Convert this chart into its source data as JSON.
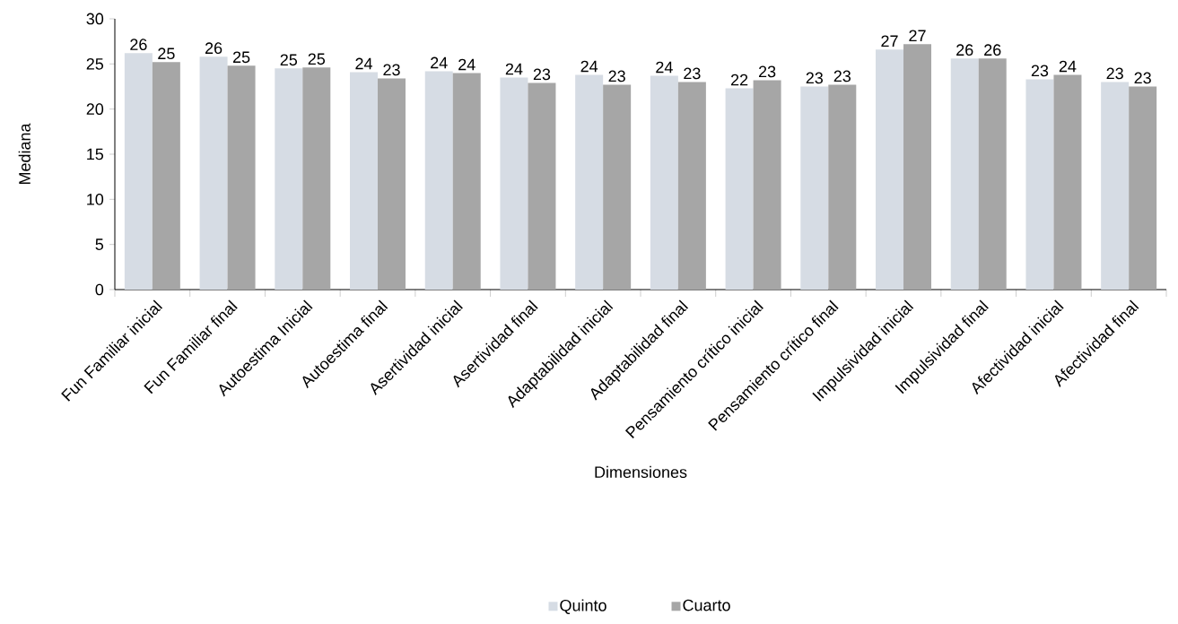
{
  "chart_data": {
    "type": "bar",
    "xlabel": "Dimensiones",
    "ylabel": "Mediana",
    "categories": [
      "Fun Familiar inicial",
      "Fun Familiar final",
      "Autoestima Inicial",
      "Autoestima final",
      "Asertividad inicial",
      "Asertividad final",
      "Adaptabilidad inicial",
      "Adaptabilidad final",
      "Pensamiento crítico inicial",
      "Pensamiento crítico final",
      "Impulsividad inicial",
      "Impulsividad final",
      "Afectividad inicial",
      "Afectividad final"
    ],
    "series": [
      {
        "name": "Quinto",
        "color": "#d6dce4",
        "values": [
          26.2,
          25.8,
          24.5,
          24.1,
          24.2,
          23.5,
          23.8,
          23.7,
          22.3,
          22.5,
          26.6,
          25.6,
          23.3,
          23.0
        ],
        "value_labels": [
          "26",
          "26",
          "25",
          "24",
          "24",
          "24",
          "24",
          "24",
          "22",
          "23",
          "27",
          "26",
          "23",
          "23"
        ]
      },
      {
        "name": "Cuarto",
        "color": "#a6a6a6",
        "values": [
          25.2,
          24.8,
          24.6,
          23.4,
          24.0,
          22.9,
          22.7,
          23.0,
          23.2,
          22.7,
          27.2,
          25.6,
          23.8,
          22.5
        ],
        "value_labels": [
          "25",
          "25",
          "25",
          "23",
          "24",
          "23",
          "23",
          "23",
          "23",
          "23",
          "27",
          "26",
          "24",
          "23"
        ]
      }
    ],
    "ylim": [
      0,
      30
    ],
    "yticks": [
      0,
      5,
      10,
      15,
      20,
      25,
      30
    ],
    "grid": false,
    "legend": "bottom"
  }
}
